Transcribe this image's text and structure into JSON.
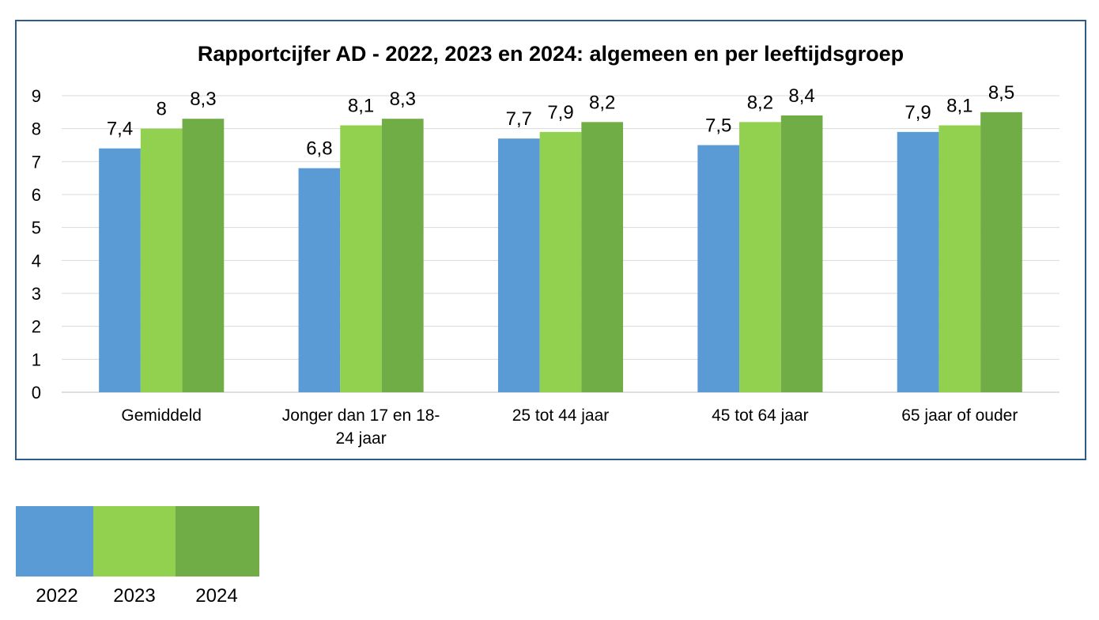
{
  "chart_data": {
    "type": "bar",
    "title": "Rapportcijfer AD - 2022, 2023 en 2024: algemeen en per leeftijdsgroep",
    "categories": [
      "Gemiddeld",
      "Jonger dan 17 en 18-24 jaar",
      "25 tot 44 jaar",
      "45 tot 64 jaar",
      "65 jaar of ouder"
    ],
    "category_lines": [
      [
        "Gemiddeld"
      ],
      [
        "Jonger dan 17 en 18-",
        "24 jaar"
      ],
      [
        "25 tot 44 jaar"
      ],
      [
        "45 tot 64 jaar"
      ],
      [
        "65 jaar of ouder"
      ]
    ],
    "series": [
      {
        "name": "2022",
        "color": "#5B9BD5",
        "values": [
          7.4,
          6.8,
          7.7,
          7.5,
          7.9
        ],
        "labels": [
          "7,4",
          "6,8",
          "7,7",
          "7,5",
          "7,9"
        ]
      },
      {
        "name": "2023",
        "color": "#92D050",
        "values": [
          8,
          8.1,
          7.9,
          8.2,
          8.1
        ],
        "labels": [
          "8",
          "8,1",
          "7,9",
          "8,2",
          "8,1"
        ]
      },
      {
        "name": "2024",
        "color": "#70AD47",
        "values": [
          8.3,
          8.3,
          8.2,
          8.4,
          8.5
        ],
        "labels": [
          "8,3",
          "8,3",
          "8,2",
          "8,4",
          "8,5"
        ]
      }
    ],
    "ylim": [
      0,
      9
    ],
    "yticks": [
      "0",
      "1",
      "2",
      "3",
      "4",
      "5",
      "6",
      "7",
      "8",
      "9"
    ],
    "grid": true,
    "legend_position": "bottom-left"
  }
}
